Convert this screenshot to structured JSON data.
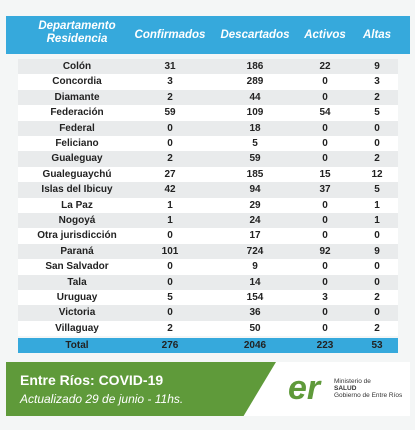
{
  "table": {
    "header": [
      "Departamento Residencia",
      "Confirmados",
      "Descartados",
      "Activos",
      "Altas"
    ],
    "rows": [
      [
        "Colón",
        31,
        186,
        22,
        9
      ],
      [
        "Concordia",
        3,
        289,
        0,
        3
      ],
      [
        "Diamante",
        2,
        44,
        0,
        2
      ],
      [
        "Federación",
        59,
        109,
        54,
        5
      ],
      [
        "Federal",
        0,
        18,
        0,
        0
      ],
      [
        "Feliciano",
        0,
        5,
        0,
        0
      ],
      [
        "Gualeguay",
        2,
        59,
        0,
        2
      ],
      [
        "Gualeguaychú",
        27,
        185,
        15,
        12
      ],
      [
        "Islas del Ibicuy",
        42,
        94,
        37,
        5
      ],
      [
        "La Paz",
        1,
        29,
        0,
        1
      ],
      [
        "Nogoyá",
        1,
        24,
        0,
        1
      ],
      [
        "Otra jurisdicción",
        0,
        17,
        0,
        0
      ],
      [
        "Paraná",
        101,
        724,
        92,
        9
      ],
      [
        "San Salvador",
        0,
        9,
        0,
        0
      ],
      [
        "Tala",
        0,
        14,
        0,
        0
      ],
      [
        "Uruguay",
        5,
        154,
        3,
        2
      ],
      [
        "Victoria",
        0,
        36,
        0,
        0
      ],
      [
        "Villaguay",
        2,
        50,
        0,
        2
      ]
    ],
    "total": [
      "Total",
      276,
      2046,
      223,
      53
    ]
  },
  "footer": {
    "title": "Entre Ríos: COVID-19",
    "subtitle": "Actualizado 29 de junio - 11hs.",
    "logo": {
      "mark": "er",
      "line1": "Ministerio de",
      "line2": "SALUD",
      "line3": "Gobierno de Entre Ríos"
    }
  }
}
